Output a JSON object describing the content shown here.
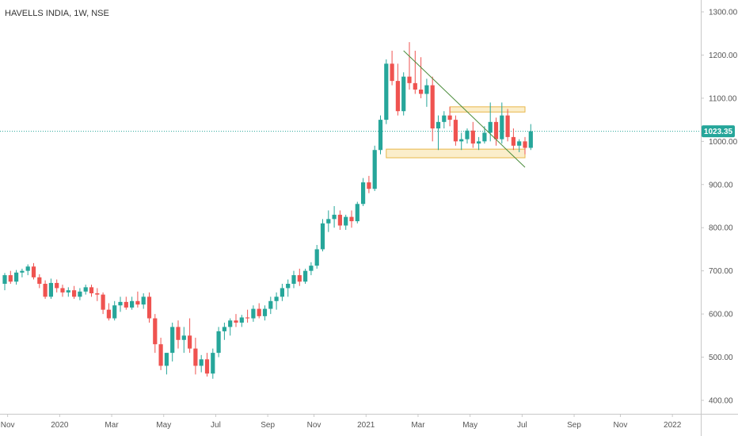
{
  "chart_data": {
    "type": "candlestick",
    "title": "HAVELLS INDIA, 1W, NSE",
    "y_axis": {
      "position": "right",
      "ylim": [
        380,
        1320
      ],
      "ticks": [
        "1300.00",
        "1200.00",
        "1100.00",
        "1000.00",
        "900.00",
        "800.00",
        "700.00",
        "600.00",
        "500.00",
        "400.00"
      ],
      "tick_values": [
        1300,
        1200,
        1100,
        1000,
        900,
        800,
        700,
        600,
        500,
        400
      ]
    },
    "x_axis": {
      "ticks": [
        "Nov",
        "2020",
        "Mar",
        "May",
        "Jul",
        "Sep",
        "Nov",
        "2021",
        "Mar",
        "May",
        "Jul",
        "Sep",
        "Nov",
        "2022"
      ],
      "tick_weeks": [
        0.5,
        9.5,
        18.5,
        27.5,
        36.5,
        45.5,
        53.5,
        62.5,
        71.5,
        80.5,
        89.5,
        98.5,
        106.5,
        115.5
      ]
    },
    "last_price": {
      "value": 1023.35,
      "label": "1023.35",
      "color": "#26a69a"
    },
    "colors": {
      "up": "#26a69a",
      "down": "#ef5350",
      "trendline": "#4a8c3a",
      "zone_border": "#e8b74a",
      "zone_fill": "#fbeecb"
    },
    "grid": false,
    "candles": [
      [
        670,
        695,
        655,
        690
      ],
      [
        690,
        700,
        670,
        675
      ],
      [
        675,
        702,
        668,
        696
      ],
      [
        696,
        705,
        685,
        700
      ],
      [
        700,
        715,
        690,
        710
      ],
      [
        710,
        718,
        680,
        685
      ],
      [
        685,
        692,
        660,
        670
      ],
      [
        670,
        678,
        635,
        640
      ],
      [
        640,
        682,
        635,
        672
      ],
      [
        672,
        680,
        650,
        660
      ],
      [
        660,
        668,
        640,
        650
      ],
      [
        650,
        662,
        640,
        655
      ],
      [
        655,
        665,
        635,
        640
      ],
      [
        640,
        660,
        632,
        652
      ],
      [
        652,
        668,
        645,
        662
      ],
      [
        662,
        668,
        640,
        648
      ],
      [
        648,
        660,
        630,
        645
      ],
      [
        645,
        650,
        600,
        610
      ],
      [
        610,
        625,
        585,
        590
      ],
      [
        590,
        630,
        585,
        620
      ],
      [
        620,
        640,
        605,
        628
      ],
      [
        628,
        640,
        610,
        615
      ],
      [
        615,
        640,
        610,
        630
      ],
      [
        630,
        652,
        615,
        622
      ],
      [
        622,
        648,
        612,
        640
      ],
      [
        640,
        650,
        580,
        590
      ],
      [
        590,
        600,
        510,
        530
      ],
      [
        530,
        545,
        470,
        480
      ],
      [
        480,
        510,
        460,
        510
      ],
      [
        510,
        580,
        490,
        570
      ],
      [
        570,
        585,
        520,
        540
      ],
      [
        540,
        570,
        510,
        550
      ],
      [
        550,
        590,
        510,
        520
      ],
      [
        520,
        545,
        460,
        480
      ],
      [
        480,
        505,
        465,
        495
      ],
      [
        495,
        510,
        455,
        462
      ],
      [
        462,
        520,
        450,
        510
      ],
      [
        510,
        570,
        500,
        560
      ],
      [
        560,
        580,
        540,
        570
      ],
      [
        570,
        590,
        550,
        585
      ],
      [
        585,
        600,
        570,
        580
      ],
      [
        580,
        598,
        570,
        592
      ],
      [
        592,
        610,
        580,
        590
      ],
      [
        590,
        620,
        582,
        612
      ],
      [
        612,
        625,
        590,
        595
      ],
      [
        595,
        620,
        585,
        612
      ],
      [
        612,
        640,
        600,
        630
      ],
      [
        630,
        650,
        610,
        640
      ],
      [
        640,
        670,
        630,
        660
      ],
      [
        660,
        680,
        640,
        670
      ],
      [
        670,
        700,
        660,
        690
      ],
      [
        690,
        705,
        665,
        675
      ],
      [
        675,
        705,
        670,
        700
      ],
      [
        700,
        720,
        690,
        712
      ],
      [
        712,
        760,
        705,
        750
      ],
      [
        750,
        820,
        745,
        810
      ],
      [
        810,
        840,
        790,
        820
      ],
      [
        820,
        850,
        800,
        830
      ],
      [
        830,
        840,
        795,
        805
      ],
      [
        805,
        830,
        795,
        825
      ],
      [
        825,
        840,
        800,
        815
      ],
      [
        815,
        860,
        810,
        855
      ],
      [
        855,
        915,
        850,
        905
      ],
      [
        905,
        920,
        880,
        890
      ],
      [
        890,
        990,
        885,
        980
      ],
      [
        980,
        1060,
        970,
        1050
      ],
      [
        1050,
        1190,
        1040,
        1180
      ],
      [
        1180,
        1210,
        1130,
        1140
      ],
      [
        1140,
        1180,
        1060,
        1070
      ],
      [
        1070,
        1160,
        1060,
        1150
      ],
      [
        1150,
        1230,
        1120,
        1135
      ],
      [
        1135,
        1210,
        1110,
        1120
      ],
      [
        1120,
        1195,
        1100,
        1110
      ],
      [
        1110,
        1145,
        1080,
        1130
      ],
      [
        1130,
        1150,
        1000,
        1030
      ],
      [
        1030,
        1060,
        980,
        1045
      ],
      [
        1045,
        1070,
        1030,
        1060
      ],
      [
        1060,
        1080,
        1035,
        1050
      ],
      [
        1050,
        1060,
        990,
        1000
      ],
      [
        1000,
        1020,
        980,
        1005
      ],
      [
        1005,
        1030,
        995,
        1025
      ],
      [
        1025,
        1045,
        985,
        995
      ],
      [
        995,
        1010,
        980,
        1000
      ],
      [
        1000,
        1035,
        995,
        1020
      ],
      [
        1020,
        1090,
        1000,
        1045
      ],
      [
        1045,
        1055,
        990,
        1005
      ],
      [
        1005,
        1090,
        995,
        1060
      ],
      [
        1060,
        1075,
        1000,
        1010
      ],
      [
        1010,
        1030,
        980,
        990
      ],
      [
        990,
        1005,
        975,
        1000
      ],
      [
        1000,
        1010,
        970,
        985
      ],
      [
        985,
        1040,
        980,
        1023.35
      ]
    ],
    "trendline": {
      "from": [
        69,
        1210
      ],
      "to": [
        90,
        940
      ]
    },
    "zones": [
      {
        "x_from": 77,
        "x_to": 90,
        "y_from": 1068,
        "y_to": 1080
      },
      {
        "x_from": 66,
        "x_to": 90,
        "y_from": 962,
        "y_to": 982
      }
    ],
    "last_price_line": 1023.35
  }
}
